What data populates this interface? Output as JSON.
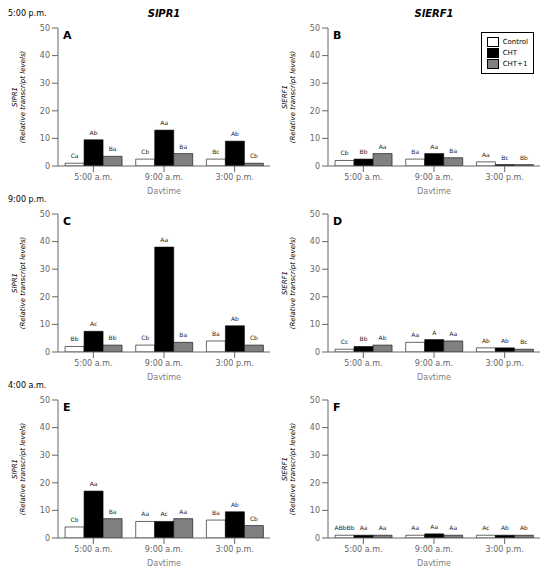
{
  "chart_data": [
    {
      "type": "bar",
      "label": "A",
      "title": "SlPR1",
      "row_label": "5:00 p.m.",
      "xlabel": "Daytime",
      "ylabel": "SlPR1\n(Relative transcript levels)",
      "categories": [
        "5:00 a.m.",
        "9:00 a.m.",
        "3:00 p.m."
      ],
      "ylim": [
        0,
        50
      ],
      "yticks": [
        0,
        10,
        20,
        30,
        40,
        50
      ],
      "series": [
        {
          "color": "white",
          "values": [
            1.0,
            2.5,
            2.5
          ],
          "annotations": [
            "Ca",
            "Cb",
            "Bc"
          ]
        },
        {
          "color": "black",
          "values": [
            9.5,
            13.0,
            9.0
          ],
          "annotations": [
            "Ab",
            "Aa",
            "Ab"
          ]
        },
        {
          "color": "#808080",
          "values": [
            3.5,
            4.5,
            1.0
          ],
          "annotations": [
            "Ba",
            "Ba",
            "Cb"
          ]
        }
      ]
    },
    {
      "type": "bar",
      "label": "B",
      "title": "SlERF1",
      "xlabel": "Daytime",
      "ylabel": "SlERF1\n(Relative transcript levels)",
      "categories": [
        "5:00 a.m.",
        "9:00 a.m.",
        "3:00 p.m."
      ],
      "ylim": [
        0,
        50
      ],
      "yticks": [
        0,
        10,
        20,
        30,
        40,
        50
      ],
      "legend": "upper right",
      "series": [
        {
          "name": "Control",
          "color": "white",
          "values": [
            2.0,
            2.5,
            1.5
          ],
          "annotations": [
            "Cb",
            "Ba",
            "Aa"
          ]
        },
        {
          "name": "CHT",
          "color": "black",
          "values": [
            2.5,
            4.5,
            0.5
          ],
          "annotations": [
            "Bb",
            "Aa",
            "Bc"
          ]
        },
        {
          "name": "CHT+1",
          "color": "#808080",
          "values": [
            4.5,
            3.0,
            0.5
          ],
          "annotations": [
            "Aa",
            "Ba",
            "Bb"
          ]
        }
      ]
    },
    {
      "type": "bar",
      "label": "C",
      "row_label": "9:00 p.m.",
      "xlabel": "Daytime",
      "ylabel": "SlPR1\n(Relative transcript levels)",
      "categories": [
        "5:00 a.m.",
        "9:00 a.m.",
        "3:00 p.m."
      ],
      "ylim": [
        0,
        50
      ],
      "yticks": [
        0,
        10,
        20,
        30,
        40,
        50
      ],
      "series": [
        {
          "color": "white",
          "values": [
            2.0,
            2.5,
            4.0
          ],
          "annotations": [
            "Bb",
            "Cb",
            "Ba"
          ]
        },
        {
          "color": "black",
          "values": [
            7.5,
            38.0,
            9.5
          ],
          "annotations": [
            "Ac",
            "Aa",
            "Ab"
          ]
        },
        {
          "color": "#808080",
          "values": [
            2.5,
            3.5,
            2.5
          ],
          "annotations": [
            "Bb",
            "Ba",
            "Cb"
          ]
        }
      ]
    },
    {
      "type": "bar",
      "label": "D",
      "xlabel": "Daytime",
      "ylabel": "SlERF1\n(Relative transcript levels)",
      "categories": [
        "5:00 a.m.",
        "9:00 a.m.",
        "3:00 p.m."
      ],
      "ylim": [
        0,
        50
      ],
      "yticks": [
        0,
        10,
        20,
        30,
        40,
        50
      ],
      "series": [
        {
          "color": "white",
          "values": [
            1.0,
            3.5,
            1.5
          ],
          "annotations": [
            "Cc",
            "Aa",
            "Ab"
          ]
        },
        {
          "color": "black",
          "values": [
            2.0,
            4.5,
            1.5
          ],
          "annotations": [
            "Bb",
            "A",
            "Ab"
          ]
        },
        {
          "color": "#808080",
          "values": [
            2.5,
            4.0,
            1.0
          ],
          "annotations": [
            "Ab",
            "Aa",
            "Bc"
          ]
        }
      ]
    },
    {
      "type": "bar",
      "label": "E",
      "row_label": "4:00 a.m.",
      "xlabel": "Daytime",
      "ylabel": "SlPR1\n(Relative transcript levels)",
      "categories": [
        "5:00 a.m.",
        "9:00 a.m.",
        "3:00 p.m."
      ],
      "ylim": [
        0,
        50
      ],
      "yticks": [
        0,
        10,
        20,
        30,
        40,
        50
      ],
      "series": [
        {
          "color": "white",
          "values": [
            4.0,
            6.0,
            6.5
          ],
          "annotations": [
            "Cb",
            "Aa",
            "Ba"
          ]
        },
        {
          "color": "black",
          "values": [
            17.0,
            6.0,
            9.5
          ],
          "annotations": [
            "Aa",
            "Ac",
            "Ab"
          ]
        },
        {
          "color": "#808080",
          "values": [
            7.0,
            7.0,
            4.5
          ],
          "annotations": [
            "Ba",
            "Aa",
            "Cb"
          ]
        }
      ]
    },
    {
      "type": "bar",
      "label": "F",
      "xlabel": "Daytime",
      "ylabel": "SlERF1\n(Relative transcript levels)",
      "categories": [
        "5:00 a.m.",
        "9:00 a.m.",
        "3:00 p.m."
      ],
      "ylim": [
        0,
        50
      ],
      "yticks": [
        0,
        10,
        20,
        30,
        40,
        50
      ],
      "series": [
        {
          "color": "white",
          "values": [
            1.0,
            1.0,
            1.0
          ],
          "annotations": [
            "ABbBb",
            "Aa",
            "Ac"
          ]
        },
        {
          "color": "black",
          "values": [
            1.0,
            1.5,
            1.0
          ],
          "annotations": [
            "Aa",
            "Aa",
            "Ab"
          ]
        },
        {
          "color": "#808080",
          "values": [
            1.0,
            1.0,
            1.0
          ],
          "annotations": [
            "Aa",
            "Aa",
            "Ab"
          ]
        }
      ]
    }
  ]
}
